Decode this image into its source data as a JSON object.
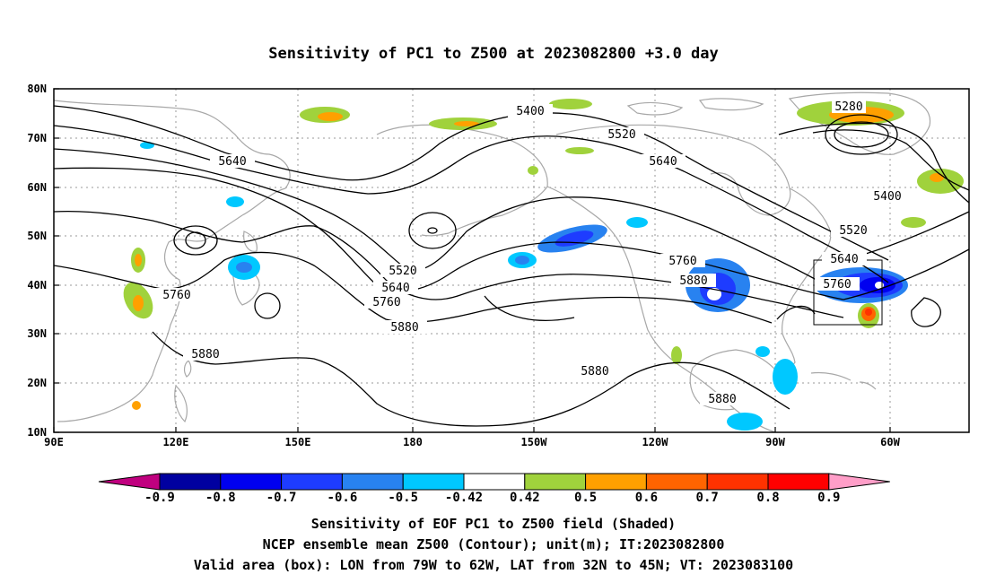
{
  "title": "Sensitivity of PC1 to Z500 at 2023082800 +3.0 day",
  "lat_labels": [
    "80N",
    "70N",
    "60N",
    "50N",
    "40N",
    "30N",
    "20N",
    "10N"
  ],
  "lon_labels": [
    "90E",
    "120E",
    "150E",
    "180",
    "150W",
    "120W",
    "90W",
    "60W"
  ],
  "contour_labels": [
    "5280",
    "5400",
    "5400",
    "5520",
    "5520",
    "5520",
    "5640",
    "5640",
    "5640",
    "5640",
    "5760",
    "5760",
    "5760",
    "5760",
    "5880",
    "5880",
    "5880",
    "5880",
    "5880"
  ],
  "colorbar": {
    "ticks": [
      "-0.9",
      "-0.8",
      "-0.7",
      "-0.6",
      "-0.5",
      "-0.42",
      "0.42",
      "0.5",
      "0.6",
      "0.7",
      "0.8",
      "0.9"
    ],
    "colors": [
      "#c0007f",
      "#0000a0",
      "#0000f0",
      "#1e3cff",
      "#2882f0",
      "#00c8ff",
      "#ffffff",
      "#a0d23c",
      "#ffa000",
      "#ff6400",
      "#ff3200",
      "#ff0000",
      "#ff9ec8"
    ]
  },
  "captions": [
    "Sensitivity of EOF PC1 to Z500 field (Shaded)",
    "NCEP ensemble mean Z500 (Contour); unit(m); IT:2023082800",
    "Valid area (box): LON from 79W to 62W, LAT from 32N to 45N; VT: 2023083100"
  ]
}
